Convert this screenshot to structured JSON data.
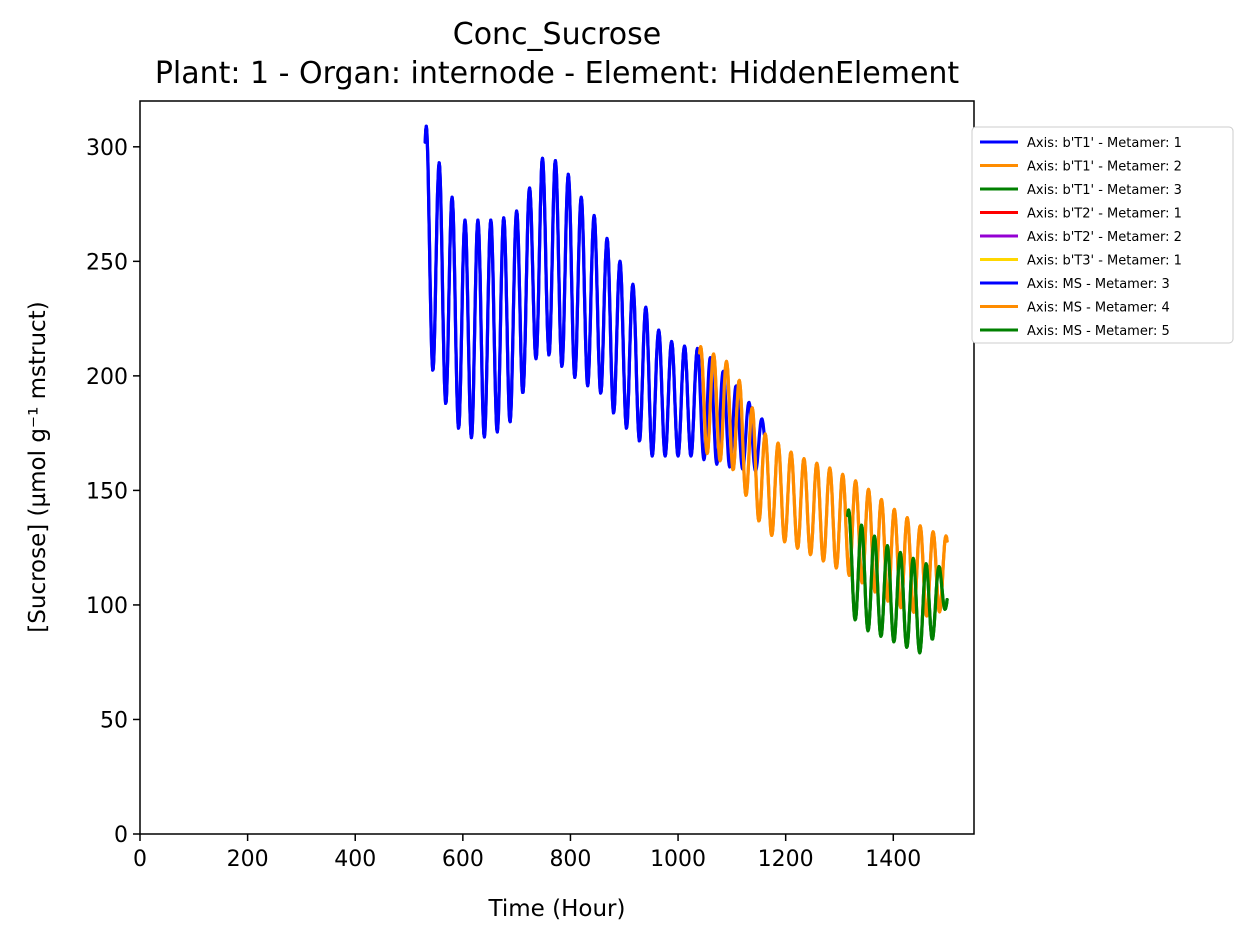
{
  "chart_data": {
    "type": "line",
    "title": "Conc_Sucrose",
    "subtitle": "Plant: 1 - Organ: internode - Element: HiddenElement",
    "xlabel": "Time (Hour)",
    "ylabel": "[Sucrose] (µmol g⁻¹ mstruct)",
    "xlim": [
      0,
      1550
    ],
    "ylim": [
      0,
      320
    ],
    "xticks": [
      "0",
      "200",
      "400",
      "600",
      "800",
      "1000",
      "1200",
      "1400"
    ],
    "yticks": [
      "0",
      "50",
      "100",
      "150",
      "200",
      "250",
      "300"
    ],
    "grid": false,
    "legend_position": "outside-top-right",
    "series": [
      {
        "name": "Axis: b'T1' - Metamer: 1",
        "color": "#0000ff",
        "oscillation": {
          "start": 530,
          "end": 1040,
          "period": 24
        },
        "x": [
          530,
          542,
          554,
          566,
          578,
          590,
          602,
          614,
          626,
          638,
          650,
          662,
          674,
          686,
          698,
          710,
          722,
          734,
          746,
          758,
          770,
          782,
          794,
          806,
          818,
          830,
          842,
          854,
          866,
          878,
          890,
          902,
          914,
          926,
          938,
          950,
          962,
          974,
          986,
          998,
          1010,
          1022,
          1034,
          1040
        ],
        "upper": [
          309,
          309,
          293,
          293,
          278,
          278,
          268,
          268,
          268,
          268,
          268,
          268,
          269,
          269,
          272,
          272,
          282,
          282,
          295,
          295,
          294,
          294,
          288,
          288,
          278,
          278,
          270,
          270,
          260,
          260,
          250,
          250,
          240,
          240,
          230,
          230,
          220,
          220,
          215,
          215,
          213,
          213,
          212,
          212
        ],
        "lower": [
          205,
          205,
          190,
          190,
          178,
          178,
          173,
          173,
          173,
          173,
          175,
          175,
          178,
          178,
          190,
          190,
          207,
          207,
          210,
          210,
          205,
          205,
          200,
          200,
          196,
          196,
          194,
          194,
          185,
          185,
          178,
          178,
          173,
          173,
          165,
          165,
          165,
          165,
          165,
          165,
          165,
          165,
          165,
          165
        ]
      },
      {
        "name": "Axis: b'T1' - Metamer: 2",
        "color": "#ff8c00",
        "oscillation": {
          "start": 1040,
          "end": 1500,
          "period": 24
        },
        "x": [
          1040,
          1100,
          1160,
          1220,
          1280,
          1340,
          1400,
          1460,
          1500
        ],
        "upper": [
          213,
          205,
          175,
          165,
          160,
          153,
          142,
          133,
          130
        ],
        "lower": [
          168,
          160,
          132,
          125,
          118,
          110,
          100,
          95,
          98
        ]
      },
      {
        "name": "Axis: b'T1' - Metamer: 3",
        "color": "#008000",
        "oscillation": {
          "start": 1315,
          "end": 1500,
          "period": 24
        },
        "x": [
          1315,
          1340,
          1380,
          1420,
          1460,
          1500
        ],
        "upper": [
          142,
          135,
          127,
          122,
          118,
          116
        ],
        "lower": [
          98,
          90,
          86,
          82,
          78,
          100
        ]
      },
      {
        "name": "Axis: b'T2' - Metamer: 1",
        "color": "#ff0000"
      },
      {
        "name": "Axis: b'T2' - Metamer: 2",
        "color": "#9400d3"
      },
      {
        "name": "Axis: b'T3' - Metamer: 1",
        "color": "#ffd700"
      },
      {
        "name": "Axis: MS - Metamer: 3",
        "color": "#0000ff",
        "oscillation": {
          "start": 530,
          "end": 1160,
          "period": 24
        },
        "x": [
          530,
          542,
          554,
          566,
          578,
          590,
          602,
          614,
          626,
          638,
          650,
          662,
          674,
          686,
          698,
          710,
          722,
          734,
          746,
          758,
          770,
          782,
          794,
          806,
          818,
          830,
          842,
          854,
          866,
          878,
          890,
          902,
          914,
          926,
          938,
          950,
          962,
          974,
          986,
          998,
          1010,
          1022,
          1034,
          1060,
          1100,
          1160
        ],
        "upper": [
          309,
          309,
          293,
          293,
          278,
          278,
          268,
          268,
          268,
          268,
          268,
          268,
          269,
          269,
          272,
          272,
          282,
          282,
          295,
          295,
          294,
          294,
          288,
          288,
          278,
          278,
          270,
          270,
          260,
          260,
          250,
          250,
          240,
          240,
          230,
          230,
          220,
          220,
          215,
          215,
          213,
          213,
          212,
          208,
          198,
          180
        ],
        "lower": [
          205,
          205,
          190,
          190,
          178,
          178,
          173,
          173,
          173,
          173,
          175,
          175,
          178,
          178,
          190,
          190,
          207,
          207,
          210,
          210,
          205,
          205,
          200,
          200,
          196,
          196,
          194,
          194,
          185,
          185,
          178,
          178,
          173,
          173,
          165,
          165,
          165,
          165,
          165,
          165,
          165,
          165,
          165,
          162,
          160,
          158
        ]
      },
      {
        "name": "Axis: MS - Metamer: 4",
        "color": "#ff8c00",
        "oscillation": {
          "start": 1040,
          "end": 1500,
          "period": 24
        },
        "x": [
          1040,
          1100,
          1160,
          1220,
          1280,
          1340,
          1400,
          1460,
          1500
        ],
        "upper": [
          213,
          205,
          175,
          165,
          160,
          153,
          142,
          133,
          130
        ],
        "lower": [
          168,
          160,
          132,
          125,
          118,
          110,
          100,
          95,
          98
        ]
      },
      {
        "name": "Axis: MS - Metamer: 5",
        "color": "#008000",
        "oscillation": {
          "start": 1315,
          "end": 1500,
          "period": 24
        },
        "x": [
          1315,
          1340,
          1380,
          1420,
          1460,
          1500
        ],
        "upper": [
          142,
          135,
          127,
          122,
          118,
          116
        ],
        "lower": [
          98,
          90,
          86,
          82,
          78,
          100
        ]
      }
    ]
  }
}
